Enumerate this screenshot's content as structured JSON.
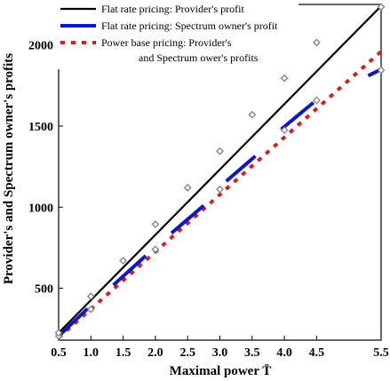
{
  "chart_data": {
    "type": "line",
    "xlabel": "Maximal power T̄",
    "ylabel": "Provider's and Spectrum owner's profits",
    "xlim": [
      0.5,
      5.5
    ],
    "ylim": [
      180,
      2250
    ],
    "x_ticks": [
      "0.5",
      "1.0",
      "1.5",
      "2.0",
      "2.5",
      "3.0",
      "3.5",
      "4.0",
      "4.5",
      "5.5"
    ],
    "x_tick_values": [
      0.5,
      1.0,
      1.5,
      2.0,
      2.5,
      3.0,
      3.5,
      4.0,
      4.5,
      5.5
    ],
    "y_ticks": [
      "500",
      "1000",
      "1500",
      "2000"
    ],
    "y_tick_values": [
      500,
      1000,
      1500,
      2000
    ],
    "legend_position": "top-left",
    "series": [
      {
        "name": "Flat rate pricing: Provider's profit",
        "color": "#000000",
        "style": "solid",
        "segments": [
          [
            [
              0.5,
              225
            ],
            [
              5.5,
              2240
            ]
          ]
        ],
        "markers": [
          [
            0.5,
            225
          ],
          [
            1.0,
            450
          ],
          [
            1.5,
            670
          ],
          [
            2.0,
            895
          ],
          [
            2.5,
            1120
          ],
          [
            3.0,
            1345
          ],
          [
            3.5,
            1570
          ],
          [
            4.0,
            1795
          ],
          [
            4.5,
            2015
          ],
          [
            5.5,
            2235
          ]
        ]
      },
      {
        "name": "Flat rate pricing: Spectrum owner's  profit",
        "color": "#0a17c4",
        "style": "solid-thick",
        "segments": [
          [
            [
              0.5,
              205
            ],
            [
              0.95,
              375
            ]
          ],
          [
            [
              1.35,
              520
            ],
            [
              1.85,
              700
            ]
          ],
          [
            [
              2.25,
              840
            ],
            [
              2.75,
              1010
            ]
          ],
          [
            [
              3.1,
              1160
            ],
            [
              3.55,
              1315
            ]
          ],
          [
            [
              3.95,
              1480
            ],
            [
              4.45,
              1645
            ]
          ],
          [
            [
              5.3,
              1810
            ],
            [
              5.5,
              1850
            ]
          ]
        ],
        "markers": [
          [
            0.5,
            205
          ],
          [
            1.0,
            370
          ],
          [
            2.0,
            740
          ],
          [
            3.0,
            1110
          ],
          [
            4.0,
            1475
          ],
          [
            4.5,
            1660
          ],
          [
            5.5,
            1845
          ]
        ]
      },
      {
        "name": "Power base pricing: Provider's and Spectrum ower's profits",
        "color": "#d0201c",
        "style": "dotted",
        "segments": [
          [
            [
              0.5,
              195
            ],
            [
              5.5,
              1960
            ]
          ]
        ],
        "markers": []
      }
    ]
  },
  "legend": [
    {
      "line1": "Flat rate pricing: Provider's profit",
      "line2": ""
    },
    {
      "line1": "Flat rate pricing: Spectrum owner's  profit",
      "line2": ""
    },
    {
      "line1": "Power base pricing: Provider's",
      "line2": "and Spectrum ower's profits"
    }
  ]
}
